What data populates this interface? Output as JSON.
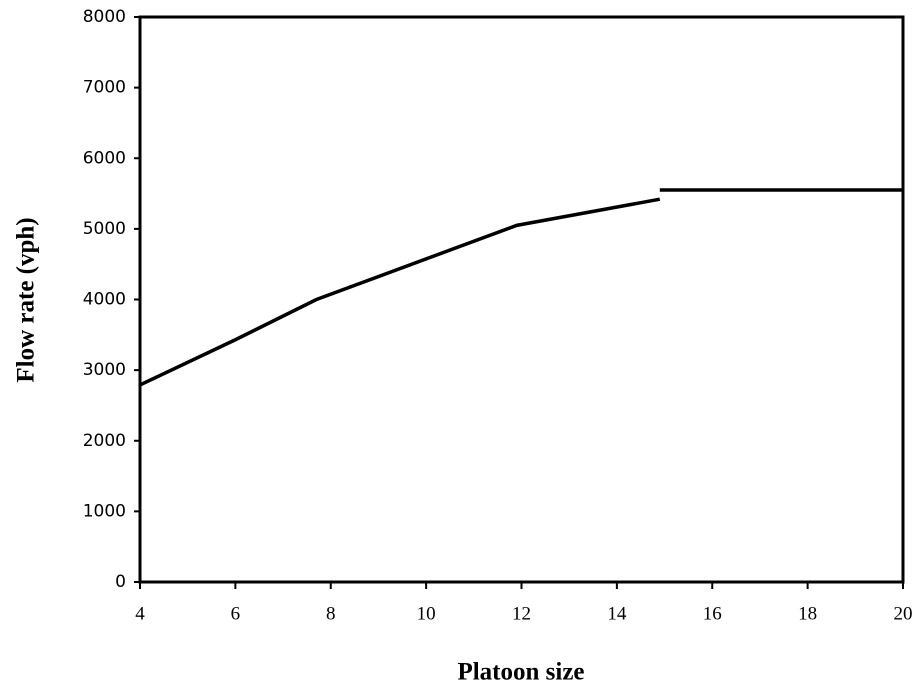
{
  "chart_data": {
    "type": "line",
    "x_label": "Platoon size",
    "y_label": "Flow rate (vph)",
    "x": [
      4,
      6,
      7.7,
      11.9,
      14.9,
      14.9,
      14.9,
      20
    ],
    "values": [
      2790,
      3430,
      4000,
      5050,
      5420,
      null,
      5550,
      5550
    ],
    "color": "#000000",
    "xlim": [
      4,
      20
    ],
    "xticks": [
      4,
      6,
      8,
      10,
      12,
      14,
      16,
      18,
      20
    ],
    "ylim": [
      0,
      8000
    ],
    "yticks": [
      0,
      1000,
      2000,
      3000,
      4000,
      5000,
      6000,
      7000,
      8000
    ],
    "grid": false
  }
}
